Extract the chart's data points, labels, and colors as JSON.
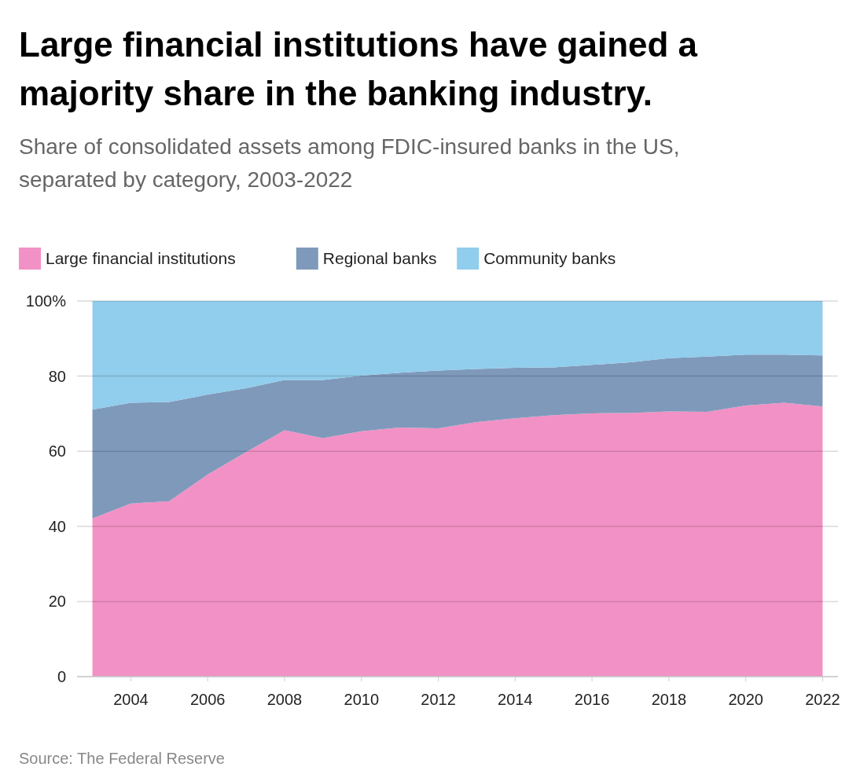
{
  "chart_data": {
    "type": "area",
    "stacked": true,
    "title": "Large financial institutions have gained a majority share in the banking industry.",
    "subtitle": "Share of consolidated assets among FDIC-insured banks in the US, separated by category, 2003-2022",
    "annotations": [
      "Source: The Federal Reserve"
    ],
    "x": [
      2003,
      2004,
      2005,
      2006,
      2007,
      2008,
      2009,
      2010,
      2011,
      2012,
      2013,
      2014,
      2015,
      2016,
      2017,
      2018,
      2019,
      2020,
      2021,
      2022
    ],
    "series": [
      {
        "name": "Large financial institutions",
        "color": "#f291c5",
        "values": [
          42.1,
          46.1,
          46.7,
          53.8,
          59.8,
          65.6,
          63.5,
          65.3,
          66.3,
          66.1,
          67.8,
          68.8,
          69.6,
          70.1,
          70.2,
          70.6,
          70.5,
          72.2,
          72.9,
          71.9
        ]
      },
      {
        "name": "Regional banks",
        "color": "#7f99bb",
        "values": [
          29.0,
          26.8,
          26.4,
          21.3,
          17.0,
          13.4,
          15.5,
          14.8,
          14.6,
          15.4,
          14.1,
          13.4,
          12.7,
          12.9,
          13.5,
          14.2,
          14.7,
          13.5,
          12.8,
          13.6
        ]
      },
      {
        "name": "Community banks",
        "color": "#91cdec",
        "values": [
          28.9,
          27.1,
          26.9,
          24.9,
          23.2,
          21.0,
          21.0,
          19.9,
          19.1,
          18.5,
          18.1,
          17.8,
          17.7,
          17.0,
          16.3,
          15.2,
          14.8,
          14.3,
          14.3,
          14.5
        ]
      }
    ],
    "xlim": [
      2002.6,
      2022.4
    ],
    "xticks": [
      2004,
      2006,
      2008,
      2010,
      2012,
      2014,
      2016,
      2018,
      2020,
      2022
    ],
    "ylim": [
      0,
      100
    ],
    "yticks": [
      0,
      20,
      40,
      60,
      80,
      {
        "value": 100,
        "label": "100%"
      }
    ],
    "grid": "y",
    "legend": "top left"
  }
}
